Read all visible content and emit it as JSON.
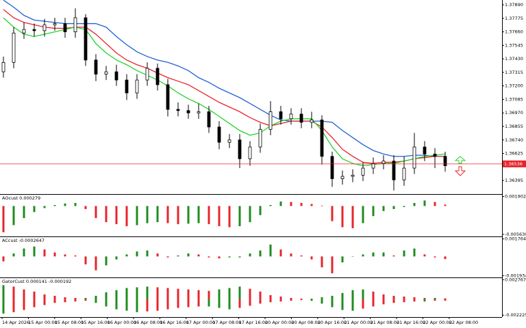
{
  "chart_data": [
    {
      "type": "candlestick",
      "open": [
        1.3732,
        1.374,
        1.3765,
        1.3768,
        1.3767,
        1.3772,
        1.3773,
        1.3766,
        1.3778,
        1.3742,
        1.373,
        1.3732,
        1.3725,
        1.3714,
        1.3725,
        1.3735,
        1.3721,
        1.37,
        1.3699,
        1.3697,
        1.3698,
        1.3685,
        1.3672,
        1.3674,
        1.3658,
        1.3668,
        1.3683,
        1.3698,
        1.3692,
        1.3696,
        1.3689,
        1.3691,
        1.366,
        1.3641,
        1.3643,
        1.3644,
        1.365,
        1.3654,
        1.3656,
        1.364,
        1.365,
        1.3668,
        1.3662,
        1.366
      ],
      "high": [
        1.3745,
        1.377,
        1.3774,
        1.3773,
        1.3777,
        1.3778,
        1.3778,
        1.3786,
        1.3781,
        1.3747,
        1.3737,
        1.3738,
        1.373,
        1.373,
        1.374,
        1.3739,
        1.3726,
        1.3706,
        1.3704,
        1.3705,
        1.3703,
        1.369,
        1.3679,
        1.3679,
        1.3673,
        1.3688,
        1.3707,
        1.3703,
        1.3701,
        1.3701,
        1.3698,
        1.3695,
        1.3664,
        1.3648,
        1.3649,
        1.3655,
        1.3659,
        1.3661,
        1.3661,
        1.366,
        1.368,
        1.3673,
        1.3667,
        1.3664
      ],
      "low": [
        1.3727,
        1.3735,
        1.376,
        1.3762,
        1.3762,
        1.3767,
        1.3761,
        1.3761,
        1.3737,
        1.3724,
        1.3725,
        1.372,
        1.3708,
        1.3709,
        1.372,
        1.3716,
        1.3694,
        1.3694,
        1.3692,
        1.3692,
        1.368,
        1.3666,
        1.3667,
        1.365,
        1.3652,
        1.3663,
        1.3678,
        1.3687,
        1.3687,
        1.3684,
        1.3684,
        1.3653,
        1.3634,
        1.3636,
        1.3638,
        1.3639,
        1.3645,
        1.3649,
        1.3631,
        1.3635,
        1.3645,
        1.3656,
        1.365,
        1.3647
      ],
      "close": [
        1.374,
        1.3765,
        1.3768,
        1.3767,
        1.3772,
        1.3773,
        1.3766,
        1.3778,
        1.3742,
        1.373,
        1.3732,
        1.3725,
        1.3714,
        1.3725,
        1.3735,
        1.3721,
        1.37,
        1.3699,
        1.3697,
        1.3698,
        1.3685,
        1.3672,
        1.3674,
        1.3658,
        1.3668,
        1.3683,
        1.3698,
        1.3692,
        1.3696,
        1.3689,
        1.3691,
        1.366,
        1.3641,
        1.3643,
        1.3644,
        1.365,
        1.3654,
        1.3656,
        1.364,
        1.365,
        1.3668,
        1.3662,
        1.366,
        1.3652
      ],
      "lines": [
        {
          "color": "#1f5fd6",
          "values": [
            1.3793,
            1.3787,
            1.378,
            1.3776,
            1.3775,
            1.3774,
            1.3773,
            1.3773,
            1.3773,
            1.3773,
            1.377,
            1.3762,
            1.3755,
            1.3749,
            1.3745,
            1.3742,
            1.374,
            1.3737,
            1.3733,
            1.3727,
            1.3723,
            1.3718,
            1.3714,
            1.371,
            1.3705,
            1.37,
            1.3695,
            1.3691,
            1.369,
            1.369,
            1.369,
            1.369,
            1.3689,
            1.3682,
            1.3676,
            1.367,
            1.3665,
            1.3662,
            1.366,
            1.366,
            1.3661,
            1.3661,
            1.366,
            1.366
          ]
        },
        {
          "color": "#e8242b",
          "values": [
            1.3785,
            1.3778,
            1.3774,
            1.3772,
            1.377,
            1.3769,
            1.3769,
            1.377,
            1.377,
            1.3764,
            1.3756,
            1.3748,
            1.3742,
            1.3738,
            1.3735,
            1.3731,
            1.3727,
            1.3724,
            1.3721,
            1.3716,
            1.3711,
            1.3706,
            1.3702,
            1.3698,
            1.3693,
            1.3689,
            1.3686,
            1.3688,
            1.369,
            1.369,
            1.369,
            1.3685,
            1.3676,
            1.3666,
            1.366,
            1.3655,
            1.3654,
            1.3655,
            1.3655,
            1.3656,
            1.3658,
            1.3659,
            1.366,
            1.366
          ]
        },
        {
          "color": "#22d42a",
          "values": [
            1.3778,
            1.377,
            1.3764,
            1.3762,
            1.3764,
            1.3766,
            1.3768,
            1.377,
            1.3768,
            1.3756,
            1.3748,
            1.3742,
            1.3738,
            1.3733,
            1.3729,
            1.3725,
            1.372,
            1.3714,
            1.3709,
            1.3705,
            1.37,
            1.3694,
            1.3688,
            1.3682,
            1.3678,
            1.368,
            1.3686,
            1.369,
            1.3692,
            1.3692,
            1.3692,
            1.3682,
            1.3668,
            1.3658,
            1.3654,
            1.3652,
            1.3653,
            1.3654,
            1.3654,
            1.3656,
            1.3658,
            1.366,
            1.3661,
            1.3662
          ]
        }
      ],
      "up_color": "#ffffff",
      "down_color": "#000000",
      "ylim": [
        1.36285,
        1.37931
      ],
      "yticks": [
        {
          "value": 1.3789,
          "label": "1.37890"
        },
        1.37775,
        {
          "value": 1.3766,
          "label": "1.37660"
        },
        1.37545,
        {
          "value": 1.3743,
          "label": "1.37430"
        },
        1.37315,
        {
          "value": 1.372,
          "label": "1.37200"
        },
        1.37085,
        {
          "value": 1.3697,
          "label": "1.36970"
        },
        1.36855,
        {
          "value": 1.3674,
          "label": "1.36740"
        },
        1.36625,
        1.36395
      ],
      "current_price": 1.36536,
      "current_price_color": "#e8242b",
      "xtick_labels": [
        "14 Apr 2026",
        "15 Apr 00:00",
        "15 Apr 08:00",
        "15 Apr 16:00",
        "16 Apr 00:00",
        "16 Apr 08:00",
        "16 Apr 16:00",
        "17 Apr 00:00",
        "17 Apr 08:00",
        "17 Apr 16:00",
        "20 Apr 00:00",
        "20 Apr 08:00",
        "20 Apr 16:00",
        "21 Apr 00:00",
        "21 Apr 08:00",
        "21 Apr 16:00",
        "22 Apr 00:00",
        "22 Apr 08:00"
      ]
    },
    {
      "type": "bar",
      "title": "AOcust 0.000279",
      "up_color": "#1e8c1e",
      "down_color": "#e8242b",
      "values": [
        -0.0052,
        -0.0038,
        -0.0024,
        -0.0012,
        -0.0004,
        0.0002,
        0.0005,
        0.0006,
        -0.0006,
        -0.0024,
        -0.0032,
        -0.0036,
        -0.004,
        -0.0038,
        -0.0034,
        -0.0032,
        -0.0034,
        -0.0036,
        -0.0035,
        -0.0034,
        -0.0036,
        -0.004,
        -0.0042,
        -0.004,
        -0.0032,
        -0.0018,
        0.0002,
        0.0009,
        0.0008,
        0.0006,
        0.0004,
        0.0001,
        -0.003,
        -0.0042,
        -0.0044,
        -0.0034,
        -0.002,
        -0.001,
        -0.0006,
        -0.0002,
        0.0006,
        0.0011,
        0.0008,
        0.000279
      ],
      "ylim": [
        -0.0059,
        0.0021
      ],
      "yticks": [
        0.001902,
        {
          "value": -0.00563,
          "label": "-0.005630"
        }
      ]
    },
    {
      "type": "bar",
      "title": "ACcust -0.0002647",
      "up_color": "#1e8c1e",
      "down_color": "#e8242b",
      "values": [
        -0.0005,
        0.0003,
        0.0008,
        0.001,
        0.0007,
        0.0004,
        0.0002,
        0.0001,
        -0.0008,
        -0.0014,
        -0.0009,
        -0.0003,
        0.0002,
        0.0005,
        0.0006,
        0.0003,
        -0.0001,
        0.0001,
        0.0003,
        0.0002,
        -0.0001,
        -0.0002,
        -0.0001,
        -0.0001,
        0.0003,
        0.0006,
        0.0012,
        0.0007,
        0.0003,
        0.0001,
        -0.0003,
        -0.0011,
        -0.0017,
        -0.0006,
        0.0,
        0.0002,
        0.0004,
        0.0004,
        0.0001,
        0.0006,
        0.0008,
        0.0002,
        -0.0001,
        -0.0002647
      ],
      "ylim": [
        -0.00205,
        0.00188
      ],
      "yticks": [
        0.0017641,
        -0.0019344
      ]
    },
    {
      "type": "gator",
      "title": "GatorCust 0.000141 -0.000192",
      "up_color": "#1e8c1e",
      "down_color": "#e8242b",
      "series": [
        {
          "values": [
            0.002,
            0.0018,
            0.0014,
            0.0011,
            0.0007,
            0.0005,
            0.0003,
            0.0002,
            0.0002,
            0.0005,
            0.001,
            0.0013,
            0.0016,
            0.0017,
            0.0018,
            0.0017,
            0.0016,
            0.0015,
            0.0014,
            0.0013,
            0.0012,
            0.0014,
            0.0016,
            0.0018,
            0.0015,
            0.0011,
            0.0006,
            0.0004,
            0.0002,
            0.0001,
            0.0001,
            0.0003,
            0.0005,
            0.0009,
            0.0013,
            0.0014,
            0.0011,
            0.0007,
            0.0005,
            0.0004,
            0.0003,
            0.0002,
            0.0002,
            0.000141
          ]
        },
        {
          "values": [
            -0.002,
            -0.0018,
            -0.0015,
            -0.0011,
            -0.0008,
            -0.0005,
            -0.0004,
            -0.0003,
            -0.0002,
            -0.0005,
            -0.001,
            -0.0014,
            -0.0016,
            -0.0018,
            -0.0017,
            -0.0016,
            -0.0014,
            -0.0012,
            -0.0011,
            -0.001,
            -0.001,
            -0.0012,
            -0.0014,
            -0.0012,
            -0.0009,
            -0.0006,
            -0.0004,
            -0.0003,
            -0.0002,
            -0.0001,
            -0.0002,
            -0.0006,
            -0.0011,
            -0.0015,
            -0.0016,
            -0.0013,
            -0.001,
            -0.0007,
            -0.0005,
            -0.0004,
            -0.0003,
            -0.0003,
            -0.0002,
            -0.000192
          ]
        }
      ],
      "ylim": [
        -0.0024,
        0.0029
      ],
      "yticks": [
        0.002767,
        -0.002225
      ]
    }
  ]
}
